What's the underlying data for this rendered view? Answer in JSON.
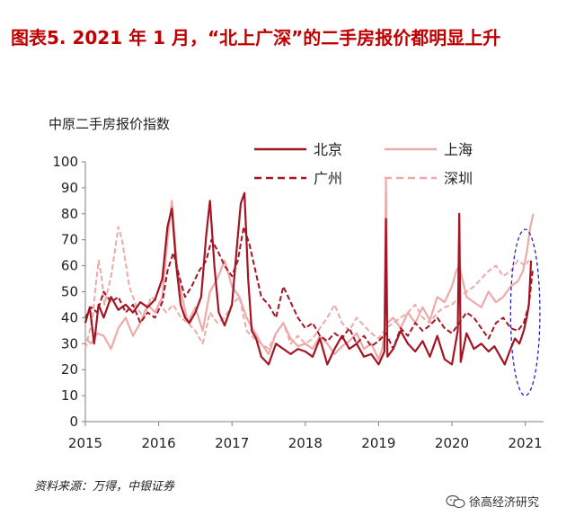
{
  "figure": {
    "title": "图表5.  2021 年 1 月，“北上广深”的二手房报价都明显上升",
    "source": "资料来源：万得，中银证券",
    "watermark": "徐高经济研究",
    "watermark_icon": "wechat-icon"
  },
  "chart_data": {
    "type": "line",
    "ylabel": "中原二手房报价指数",
    "xlabel": "",
    "xlim": [
      2015,
      2021.25
    ],
    "ylim": [
      0,
      100
    ],
    "yticks": [
      0,
      10,
      20,
      30,
      40,
      50,
      60,
      70,
      80,
      90,
      100
    ],
    "xticks": [
      "2015",
      "2016",
      "2017",
      "2018",
      "2019",
      "2020",
      "2021"
    ],
    "grid": false,
    "legend_position": "top-right",
    "annotation": {
      "shape": "dashed-ellipse",
      "color": "#2222cc",
      "center_x": 2021.0,
      "center_y": 42,
      "half_width_years": 0.2,
      "half_height": 32
    },
    "series": [
      {
        "name": "北京",
        "color": "#a31523",
        "style": "solid",
        "width": 2.2,
        "x": [
          2015.0,
          2015.06,
          2015.12,
          2015.18,
          2015.25,
          2015.35,
          2015.45,
          2015.55,
          2015.65,
          2015.75,
          2015.85,
          2015.95,
          2016.05,
          2016.12,
          2016.18,
          2016.24,
          2016.3,
          2016.36,
          2016.42,
          2016.5,
          2016.58,
          2016.65,
          2016.7,
          2016.76,
          2016.82,
          2016.9,
          2017.0,
          2017.06,
          2017.12,
          2017.17,
          2017.22,
          2017.27,
          2017.33,
          2017.4,
          2017.5,
          2017.6,
          2017.7,
          2017.8,
          2017.9,
          2018.0,
          2018.1,
          2018.2,
          2018.3,
          2018.4,
          2018.5,
          2018.6,
          2018.7,
          2018.8,
          2018.9,
          2019.0,
          2019.08,
          2019.1,
          2019.12,
          2019.2,
          2019.3,
          2019.4,
          2019.5,
          2019.6,
          2019.7,
          2019.8,
          2019.9,
          2020.0,
          2020.08,
          2020.1,
          2020.12,
          2020.2,
          2020.3,
          2020.4,
          2020.5,
          2020.58,
          2020.66,
          2020.72,
          2020.8,
          2020.86,
          2020.92,
          2020.98,
          2021.02,
          2021.05,
          2021.08
        ],
        "y": [
          38,
          44,
          30,
          45,
          40,
          48,
          43,
          45,
          42,
          46,
          44,
          47,
          55,
          75,
          82,
          60,
          45,
          40,
          38,
          42,
          48,
          72,
          85,
          60,
          42,
          37,
          45,
          65,
          84,
          88,
          55,
          35,
          32,
          25,
          22,
          30,
          28,
          26,
          28,
          27,
          25,
          32,
          22,
          28,
          33,
          28,
          30,
          25,
          26,
          22,
          27,
          78,
          25,
          28,
          35,
          30,
          27,
          31,
          25,
          33,
          24,
          22,
          35,
          80,
          23,
          34,
          28,
          30,
          27,
          29,
          25,
          22,
          28,
          32,
          30,
          35,
          40,
          45,
          62
        ]
      },
      {
        "name": "上海",
        "color": "#ecaaa8",
        "style": "solid",
        "width": 2.2,
        "x": [
          2015.0,
          2015.08,
          2015.16,
          2015.25,
          2015.35,
          2015.45,
          2015.55,
          2015.65,
          2015.75,
          2015.85,
          2015.95,
          2016.05,
          2016.12,
          2016.18,
          2016.25,
          2016.32,
          2016.4,
          2016.5,
          2016.6,
          2016.7,
          2016.8,
          2016.9,
          2017.0,
          2017.1,
          2017.2,
          2017.3,
          2017.4,
          2017.5,
          2017.6,
          2017.7,
          2017.8,
          2017.9,
          2018.0,
          2018.1,
          2018.2,
          2018.3,
          2018.4,
          2018.5,
          2018.6,
          2018.7,
          2018.8,
          2018.9,
          2019.0,
          2019.05,
          2019.08,
          2019.1,
          2019.12,
          2019.2,
          2019.3,
          2019.4,
          2019.5,
          2019.6,
          2019.7,
          2019.8,
          2019.9,
          2020.0,
          2020.06,
          2020.1,
          2020.15,
          2020.2,
          2020.3,
          2020.4,
          2020.5,
          2020.6,
          2020.7,
          2020.8,
          2020.9,
          2020.97,
          2021.02,
          2021.07,
          2021.11
        ],
        "y": [
          32,
          30,
          34,
          33,
          28,
          36,
          40,
          33,
          38,
          45,
          42,
          48,
          70,
          85,
          60,
          48,
          38,
          44,
          35,
          50,
          55,
          62,
          52,
          48,
          40,
          35,
          30,
          26,
          34,
          38,
          32,
          29,
          30,
          28,
          33,
          30,
          26,
          29,
          31,
          34,
          28,
          30,
          24,
          28,
          35,
          93,
          38,
          40,
          36,
          42,
          38,
          44,
          39,
          48,
          46,
          52,
          58,
          60,
          54,
          48,
          46,
          44,
          50,
          46,
          48,
          52,
          54,
          58,
          65,
          75,
          80
        ]
      },
      {
        "name": "广州",
        "color": "#a31523",
        "style": "dashed",
        "width": 2.0,
        "x": [
          2015.0,
          2015.08,
          2015.16,
          2015.25,
          2015.35,
          2015.45,
          2015.55,
          2015.65,
          2015.75,
          2015.85,
          2015.95,
          2016.05,
          2016.12,
          2016.2,
          2016.28,
          2016.36,
          2016.45,
          2016.55,
          2016.65,
          2016.72,
          2016.8,
          2016.9,
          2017.0,
          2017.08,
          2017.16,
          2017.24,
          2017.32,
          2017.4,
          2017.5,
          2017.6,
          2017.7,
          2017.8,
          2017.9,
          2018.0,
          2018.1,
          2018.2,
          2018.3,
          2018.4,
          2018.5,
          2018.6,
          2018.7,
          2018.8,
          2018.9,
          2019.0,
          2019.1,
          2019.2,
          2019.3,
          2019.4,
          2019.5,
          2019.6,
          2019.7,
          2019.8,
          2019.9,
          2020.0,
          2020.1,
          2020.2,
          2020.3,
          2020.4,
          2020.5,
          2020.6,
          2020.7,
          2020.8,
          2020.9,
          2020.98,
          2021.05,
          2021.1
        ],
        "y": [
          40,
          44,
          42,
          50,
          46,
          48,
          42,
          45,
          38,
          42,
          40,
          46,
          58,
          65,
          56,
          48,
          52,
          58,
          62,
          70,
          66,
          60,
          56,
          62,
          75,
          68,
          58,
          48,
          45,
          40,
          52,
          46,
          40,
          36,
          38,
          33,
          31,
          34,
          32,
          36,
          30,
          33,
          29,
          31,
          34,
          28,
          36,
          33,
          38,
          35,
          37,
          40,
          36,
          34,
          38,
          42,
          40,
          36,
          32,
          38,
          40,
          36,
          35,
          38,
          45,
          58
        ]
      },
      {
        "name": "深圳",
        "color": "#ecaaa8",
        "style": "dashed",
        "width": 2.0,
        "x": [
          2015.0,
          2015.05,
          2015.1,
          2015.14,
          2015.18,
          2015.22,
          2015.26,
          2015.3,
          2015.35,
          2015.4,
          2015.45,
          2015.5,
          2015.6,
          2015.7,
          2015.8,
          2015.9,
          2016.0,
          2016.1,
          2016.2,
          2016.3,
          2016.4,
          2016.5,
          2016.6,
          2016.7,
          2016.8,
          2016.9,
          2017.0,
          2017.1,
          2017.2,
          2017.3,
          2017.4,
          2017.5,
          2017.6,
          2017.7,
          2017.8,
          2017.9,
          2018.0,
          2018.1,
          2018.2,
          2018.3,
          2018.4,
          2018.5,
          2018.6,
          2018.7,
          2018.8,
          2018.9,
          2019.0,
          2019.1,
          2019.2,
          2019.3,
          2019.4,
          2019.5,
          2019.6,
          2019.7,
          2019.8,
          2019.9,
          2020.0,
          2020.1,
          2020.2,
          2020.3,
          2020.4,
          2020.5,
          2020.6,
          2020.7,
          2020.8,
          2020.9,
          2021.0,
          2021.05
        ],
        "y": [
          28,
          34,
          40,
          52,
          62,
          56,
          45,
          50,
          56,
          65,
          75,
          70,
          52,
          44,
          40,
          48,
          46,
          42,
          45,
          40,
          38,
          35,
          30,
          42,
          38,
          40,
          45,
          48,
          35,
          32,
          30,
          28,
          34,
          38,
          30,
          33,
          30,
          32,
          36,
          40,
          45,
          38,
          35,
          40,
          37,
          34,
          32,
          36,
          38,
          40,
          42,
          45,
          40,
          38,
          42,
          44,
          45,
          48,
          50,
          52,
          55,
          58,
          60,
          56,
          58,
          62,
          60,
          62
        ]
      }
    ]
  }
}
